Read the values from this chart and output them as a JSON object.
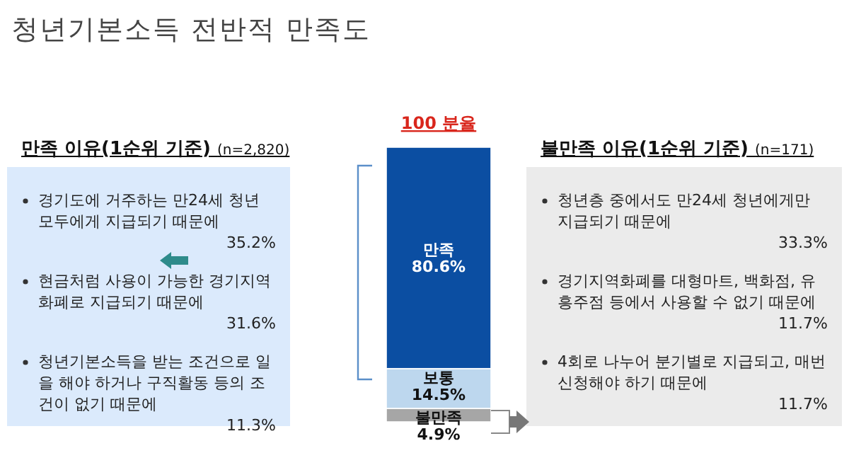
{
  "chart_data": {
    "type": "bar",
    "stacked": true,
    "title": "청년기본소득 전반적 만족도",
    "subtitle": "100 분율",
    "categories": [
      null
    ],
    "series": [
      {
        "name": "불만족",
        "color": "#a6a6a6",
        "values": [
          4.9
        ],
        "value_labels": [
          "4.9%"
        ]
      },
      {
        "name": "보통",
        "color": "#bdd7ee",
        "values": [
          14.5
        ],
        "value_labels": [
          "14.5%"
        ]
      },
      {
        "name": "만족",
        "color": "#0b4ea2",
        "values": [
          80.6
        ],
        "value_labels": [
          "80.6%"
        ]
      }
    ],
    "annotations": [
      "만족 이유(1순위 기준)",
      "(n=2,820)",
      "경기도에 거주하는 만24세 청년 모두에게 지급되기 때문에",
      "35.2%",
      "현금처럼 사용이 가능한 경기지역화폐로 지급되기 때문에",
      "31.6%",
      "청년기본소득을 받는 조건으로 일을 해야 하거나 구직활동 등의 조건이 없기 때문에",
      "11.3%",
      "불만족 이유(1순위 기준)",
      "(n=171)",
      "청년층 중에서도 만24세 청년에게만 지급되기 때문에",
      "33.3%",
      "경기지역화폐를 대형마트, 백화점, 유흥주점 등에서 사용할 수 없기 때문에",
      "11.7%",
      "4회로 나누어 분기별로 지급되고, 매번 신청해야 하기 때문에",
      "11.7%"
    ]
  }
}
